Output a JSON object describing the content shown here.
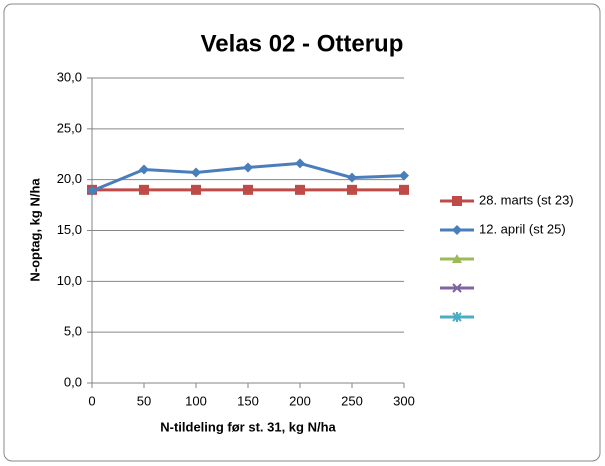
{
  "chart_data": {
    "type": "line",
    "title": "Velas 02 - Otterup",
    "xlabel": "N-tildeling før st. 31, kg N/ha",
    "ylabel": "N-optag, kg N/ha",
    "x": [
      0,
      50,
      100,
      150,
      200,
      250,
      300
    ],
    "xlim": [
      0,
      300
    ],
    "xticks": [
      0,
      50,
      100,
      150,
      200,
      250,
      300
    ],
    "ylim": [
      0,
      30
    ],
    "yticks": [
      {
        "value": 0,
        "label": "0,0"
      },
      {
        "value": 5,
        "label": "5,0"
      },
      {
        "value": 10,
        "label": "10,0"
      },
      {
        "value": 15,
        "label": "15,0"
      },
      {
        "value": 20,
        "label": "20,0"
      },
      {
        "value": 25,
        "label": "25,0"
      },
      {
        "value": 30,
        "label": "30,0"
      }
    ],
    "grid": true,
    "legend": "right",
    "series": [
      {
        "name": "28. marts (st 23)",
        "color": "#be4b48",
        "marker": "square",
        "values": [
          19.0,
          19.0,
          19.0,
          19.0,
          19.0,
          19.0,
          19.0
        ]
      },
      {
        "name": "12. april (st 25)",
        "color": "#4a7ebb",
        "marker": "diamond",
        "values": [
          18.9,
          21.0,
          20.7,
          21.2,
          21.6,
          20.2,
          20.4
        ]
      },
      {
        "color": "#9bbb59",
        "marker": "triangle",
        "values": [
          null,
          null,
          null,
          null,
          null,
          null,
          null
        ]
      },
      {
        "color": "#8064a2",
        "marker": "x",
        "values": [
          null,
          null,
          null,
          null,
          null,
          null,
          null
        ]
      },
      {
        "color": "#4bacc6",
        "marker": "star",
        "values": [
          null,
          null,
          null,
          null,
          null,
          null,
          null
        ]
      }
    ]
  }
}
